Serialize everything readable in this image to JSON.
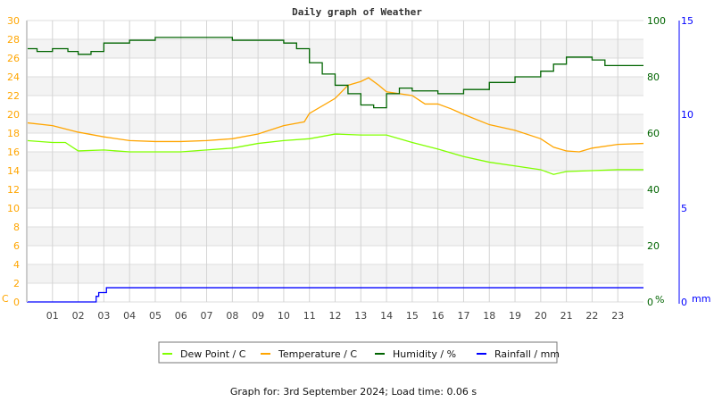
{
  "chart_data": {
    "type": "line",
    "title": "Daily graph of Weather",
    "footer": "Graph for: 3rd September 2024; Load time: 0.06 s",
    "x_ticks": [
      "01",
      "02",
      "03",
      "04",
      "05",
      "06",
      "07",
      "08",
      "09",
      "10",
      "11",
      "12",
      "13",
      "14",
      "15",
      "16",
      "17",
      "18",
      "19",
      "20",
      "21",
      "22",
      "23"
    ],
    "xlim": [
      0,
      24
    ],
    "axes": {
      "left": {
        "unit": "C",
        "ylim": [
          0,
          30
        ],
        "ticks": [
          0,
          2,
          4,
          6,
          8,
          10,
          12,
          14,
          16,
          18,
          20,
          22,
          24,
          26,
          28,
          30
        ],
        "color": "#FFA500"
      },
      "right1": {
        "unit": "%",
        "ylim": [
          0,
          100
        ],
        "ticks": [
          0,
          20,
          40,
          60,
          80,
          100
        ],
        "color": "#006400"
      },
      "right2": {
        "unit": "mm",
        "ylim": [
          0,
          15
        ],
        "ticks": [
          0,
          5,
          10,
          15
        ],
        "color": "#0000FF"
      }
    },
    "grid": true,
    "legend_placement": "bottom",
    "series": [
      {
        "name": "Dew Point / C",
        "axis": "left",
        "color": "#80FF00",
        "x": [
          0,
          1,
          1.5,
          2,
          3,
          4,
          5,
          6,
          7,
          8,
          9,
          10,
          11,
          12,
          13,
          14,
          15,
          16,
          17,
          18,
          19,
          20,
          20.5,
          21,
          22,
          23,
          24
        ],
        "y": [
          17.2,
          17.0,
          17.0,
          16.1,
          16.2,
          16.0,
          16.0,
          16.0,
          16.2,
          16.4,
          16.9,
          17.2,
          17.4,
          17.9,
          17.8,
          17.8,
          17.0,
          16.3,
          15.5,
          14.9,
          14.5,
          14.1,
          13.6,
          13.9,
          14.0,
          14.1,
          14.1
        ]
      },
      {
        "name": "Temperature / C",
        "axis": "left",
        "color": "#FFA500",
        "x": [
          0,
          1,
          2,
          3,
          4,
          5,
          6,
          7,
          8,
          9,
          10,
          10.8,
          11,
          12,
          12.5,
          13,
          13.3,
          13.7,
          14,
          15,
          15.5,
          16,
          16.5,
          17,
          18,
          19,
          20,
          20.5,
          21,
          21.5,
          22,
          23,
          24
        ],
        "y": [
          19.1,
          18.8,
          18.1,
          17.6,
          17.2,
          17.1,
          17.1,
          17.2,
          17.4,
          17.9,
          18.8,
          19.2,
          20.1,
          21.7,
          23.1,
          23.5,
          23.9,
          23.1,
          22.4,
          22.0,
          21.1,
          21.1,
          20.6,
          20.0,
          18.9,
          18.3,
          17.4,
          16.5,
          16.1,
          16.0,
          16.4,
          16.8,
          16.9
        ]
      },
      {
        "name": "Humidity / %",
        "axis": "right1",
        "color": "#006400",
        "x": [
          0,
          0.4,
          1,
          1.6,
          2,
          2.5,
          3,
          4,
          5,
          7.5,
          8,
          10,
          10.5,
          11,
          11.5,
          12,
          12.5,
          13,
          13.5,
          14,
          14.5,
          15,
          16,
          17,
          18,
          19,
          20,
          20.5,
          21,
          22,
          22.5,
          24
        ],
        "y": [
          90,
          89,
          90,
          89,
          88,
          89,
          92,
          93,
          94,
          94,
          93,
          92,
          90,
          85,
          81,
          77,
          74,
          70,
          69,
          74,
          76,
          75,
          74,
          75.5,
          78,
          80,
          82,
          84.5,
          87,
          86,
          84,
          84
        ]
      },
      {
        "name": "Rainfall / mm",
        "axis": "right2",
        "color": "#0000FF",
        "x": [
          0,
          2.7,
          2.8,
          3.1,
          24
        ],
        "y": [
          0,
          0.3,
          0.5,
          0.76,
          0.76
        ]
      }
    ]
  }
}
